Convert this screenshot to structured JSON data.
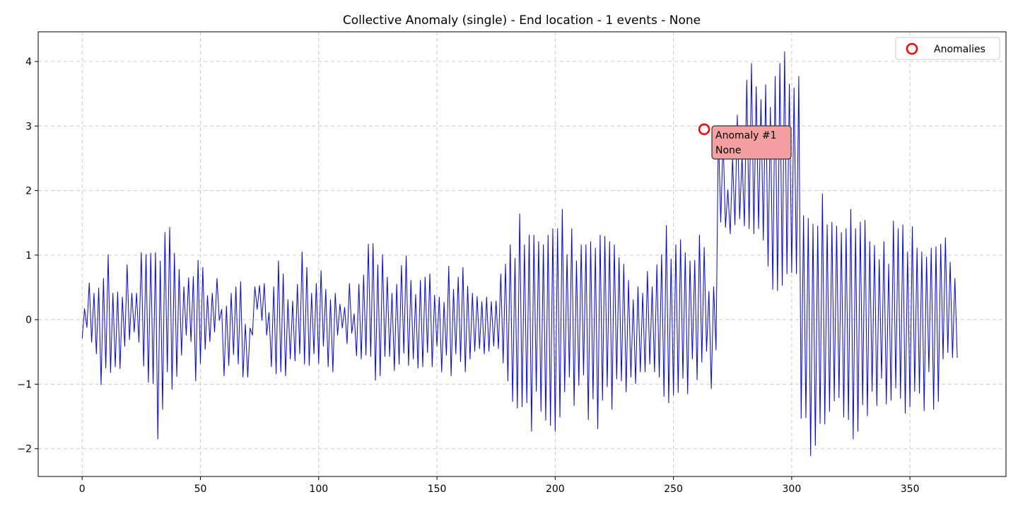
{
  "chart_data": {
    "type": "line",
    "title": "Collective Anomaly (single) - End location - 1 events - None",
    "xlabel": "",
    "ylabel": "",
    "xlim": [
      -18.6,
      390.6
    ],
    "ylim": [
      -2.43,
      4.46
    ],
    "xticks": [
      0,
      50,
      100,
      150,
      200,
      250,
      300,
      350
    ],
    "yticks": [
      -2,
      -1,
      0,
      1,
      2,
      3,
      4
    ],
    "ytick_labels": [
      "−2",
      "−1",
      "0",
      "1",
      "2",
      "3",
      "4"
    ],
    "grid": true,
    "legend_position": "top-right",
    "colors": {
      "series": "#0000ff",
      "anomaly": "#ff0000",
      "annotation_fill": "#f4a0a0",
      "grid": "#cccccc"
    },
    "series": [
      {
        "values": [
          -0.29,
          0.17,
          -0.12,
          0.57,
          -0.35,
          0.41,
          -0.53,
          0.49,
          -1.01,
          0.64,
          -0.75,
          1.01,
          -0.82,
          0.41,
          -0.73,
          0.43,
          -0.76,
          0.35,
          -0.41,
          0.85,
          -0.31,
          0.41,
          -0.19,
          0.41,
          -0.35,
          1.04,
          -0.72,
          1.01,
          -0.97,
          1.03,
          -0.99,
          1.04,
          -1.85,
          0.91,
          -1.39,
          1.35,
          -0.81,
          1.43,
          -1.08,
          1.03,
          -0.88,
          0.78,
          -0.55,
          0.51,
          -0.24,
          0.65,
          -0.34,
          0.67,
          -0.95,
          0.92,
          -0.68,
          0.81,
          -0.46,
          0.37,
          -0.34,
          0.41,
          -0.19,
          0.64,
          -0.01,
          0.16,
          -0.87,
          0.21,
          -0.71,
          0.41,
          -0.54,
          0.51,
          -0.69,
          0.59,
          -0.89,
          -0.07,
          -0.89,
          -0.13,
          -0.24,
          0.51,
          0.16,
          0.53,
          -0.01,
          0.56,
          -0.24,
          0.11,
          -0.73,
          0.51,
          -0.84,
          0.91,
          -0.81,
          0.71,
          -0.87,
          0.31,
          -0.61,
          0.29,
          -0.64,
          0.55,
          -0.53,
          1.05,
          -0.69,
          0.81,
          -0.71,
          0.41,
          -0.53,
          0.56,
          -0.68,
          0.76,
          -0.41,
          0.47,
          -0.73,
          0.31,
          -0.81,
          0.41,
          -0.24,
          0.24,
          -0.13,
          0.19,
          -0.37,
          0.56,
          -0.21,
          0.09,
          -0.56,
          0.55,
          -0.61,
          0.69,
          -0.55,
          1.17,
          -0.57,
          1.18,
          -0.94,
          0.85,
          -0.87,
          1.01,
          -0.57,
          0.66,
          -0.57,
          0.41,
          -0.79,
          0.55,
          -0.69,
          0.84,
          -0.52,
          0.99,
          -0.71,
          0.61,
          -0.61,
          0.39,
          -0.75,
          0.61,
          -0.73,
          0.66,
          -0.51,
          0.71,
          -0.73,
          0.38,
          -0.41,
          0.35,
          -0.81,
          0.27,
          -0.55,
          0.83,
          -0.87,
          0.47,
          -0.53,
          0.66,
          -0.65,
          0.81,
          -0.81,
          0.52,
          -0.61,
          0.41,
          -0.49,
          0.36,
          -0.45,
          0.28,
          -0.53,
          0.35,
          -0.49,
          0.28,
          -0.41,
          0.29,
          -0.45,
          0.71,
          -0.67,
          0.86,
          -0.95,
          1.16,
          -1.27,
          0.95,
          -1.37,
          1.64,
          -1.35,
          1.16,
          -1.29,
          1.31,
          -1.73,
          1.31,
          -1.11,
          1.21,
          -1.42,
          1.16,
          -1.56,
          1.31,
          -1.64,
          1.41,
          -1.73,
          1.41,
          -1.51,
          1.71,
          -1.12,
          1.01,
          -0.89,
          1.41,
          -1.33,
          0.91,
          -1.02,
          1.16,
          -0.86,
          1.16,
          -1.55,
          1.21,
          -1.23,
          1.11,
          -1.69,
          1.31,
          -1.25,
          1.29,
          -1.04,
          1.21,
          -1.39,
          1.16,
          -0.92,
          0.96,
          -0.95,
          0.86,
          -1.12,
          0.61,
          -0.89,
          0.31,
          -0.99,
          0.51,
          -0.81,
          0.41,
          -0.81,
          0.75,
          -0.69,
          0.51,
          -0.81,
          0.85,
          -0.89,
          1.01,
          -1.19,
          1.46,
          -1.29,
          0.94,
          -1.17,
          1.16,
          -1.13,
          1.24,
          -0.91,
          1.04,
          -1.15,
          0.91,
          -0.61,
          0.92,
          -0.93,
          1.31,
          -0.66,
          1.12,
          -0.49,
          0.44,
          -1.07,
          0.51,
          -0.47,
          2.95,
          1.51,
          2.81,
          1.43,
          2.01,
          1.33,
          2.51,
          1.47,
          3.17,
          1.56,
          2.55,
          1.45,
          3.71,
          1.41,
          3.97,
          1.33,
          3.61,
          1.41,
          3.41,
          1.23,
          3.64,
          0.83,
          3.29,
          0.47,
          3.77,
          0.45,
          3.97,
          0.53,
          4.15,
          0.71,
          3.65,
          0.73,
          3.59,
          0.71,
          3.77,
          -1.53,
          1.61,
          -1.52,
          1.57,
          -2.11,
          1.48,
          -1.95,
          1.45,
          -1.61,
          1.95,
          -1.62,
          1.47,
          -1.42,
          1.51,
          -1.26,
          1.45,
          -1.21,
          1.35,
          -1.51,
          1.41,
          -1.55,
          1.71,
          -1.85,
          1.41,
          -1.73,
          1.51,
          -1.32,
          1.54,
          -1.49,
          1.21,
          -1.11,
          1.15,
          -1.33,
          0.93,
          -0.91,
          1.21,
          -1.31,
          0.86,
          -1.25,
          1.53,
          -1.06,
          1.41,
          -1.22,
          1.47,
          -1.45,
          1.05,
          -1.35,
          1.44,
          -1.11,
          1.11,
          -1.14,
          1.05,
          -1.41,
          0.97,
          -0.81,
          1.11,
          -1.39,
          1.13,
          -1.27,
          1.17,
          -0.61,
          1.27,
          -0.51,
          0.89,
          -0.59,
          0.64,
          -0.59
        ]
      }
    ],
    "anomalies": [
      {
        "x": 263,
        "y": 2.95
      }
    ],
    "annotation": {
      "line1": "Anomaly #1",
      "line2": "None"
    },
    "legend": {
      "label": "Anomalies"
    }
  }
}
